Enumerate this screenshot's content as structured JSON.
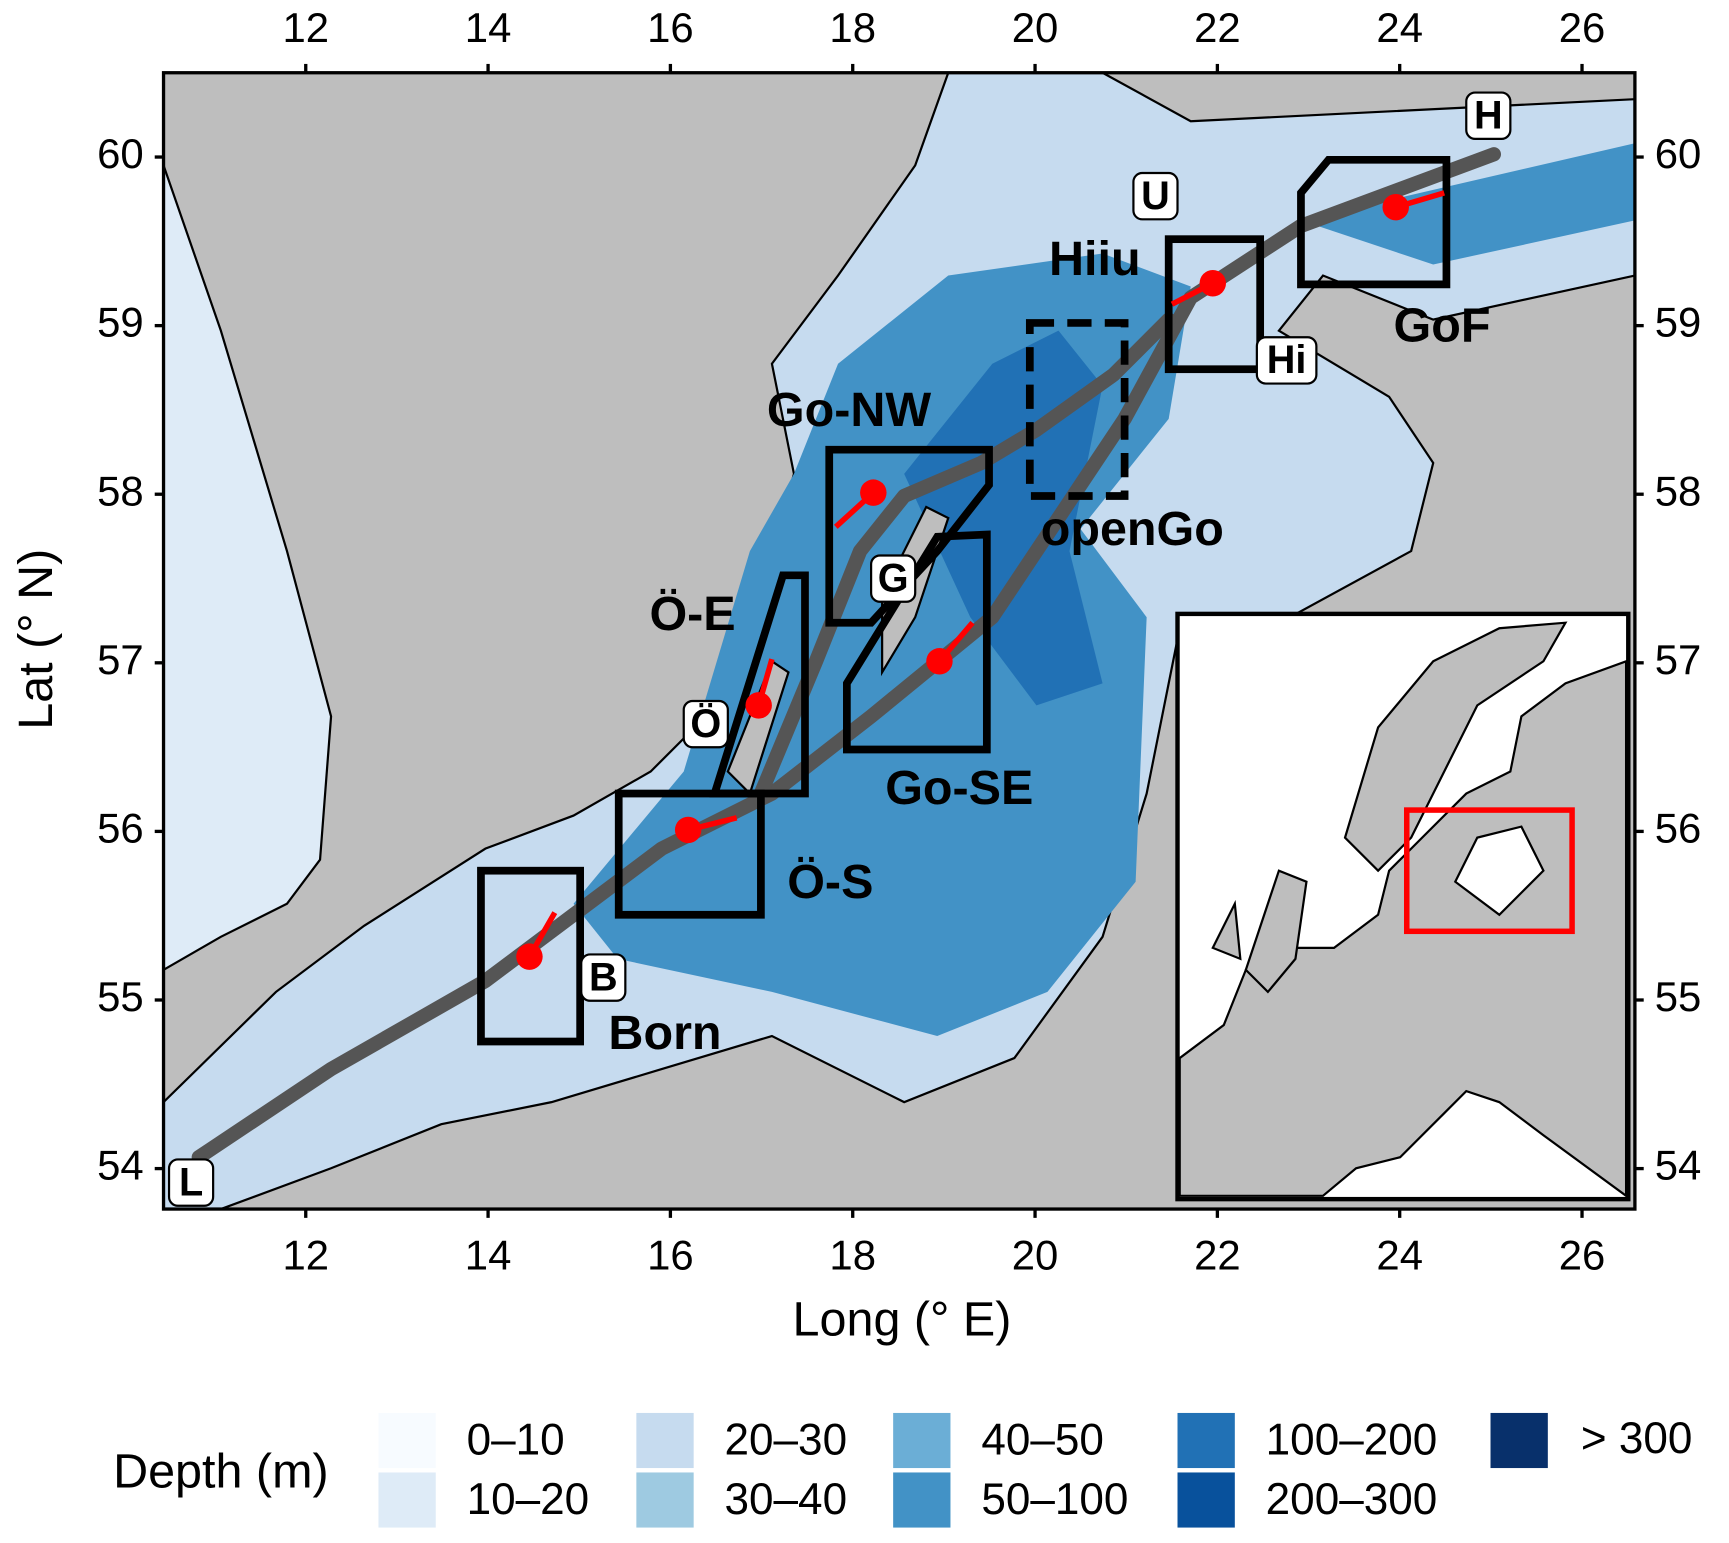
{
  "map": {
    "xlabel": "Long (° E)",
    "ylabel": "Lat (° N)",
    "xlim": [
      10.44,
      26.58
    ],
    "ylim": [
      53.76,
      60.5
    ],
    "xticks": [
      12,
      14,
      16,
      18,
      20,
      22,
      24,
      26
    ],
    "yticks": [
      54,
      55,
      56,
      57,
      58,
      59,
      60
    ],
    "regions": [
      "Born",
      "Ö-S",
      "Ö-E",
      "Go-NW",
      "Go-SE",
      "openGo",
      "Hiiu",
      "GoF"
    ],
    "stations": [
      "L",
      "B",
      "Ö",
      "G",
      "Hi",
      "U",
      "H"
    ],
    "legend": {
      "title": "Depth (m)",
      "classes": [
        {
          "label": "0–10",
          "color": "#f7fbff"
        },
        {
          "label": "10–20",
          "color": "#deebf7"
        },
        {
          "label": "20–30",
          "color": "#c6dbef"
        },
        {
          "label": "30–40",
          "color": "#9ecae1"
        },
        {
          "label": "40–50",
          "color": "#6baed6"
        },
        {
          "label": "50–100",
          "color": "#4292c6"
        },
        {
          "label": "100–200",
          "color": "#2171b5"
        },
        {
          "label": "200–300",
          "color": "#08519c"
        },
        {
          "label": "> 300",
          "color": "#08306b"
        }
      ]
    }
  }
}
